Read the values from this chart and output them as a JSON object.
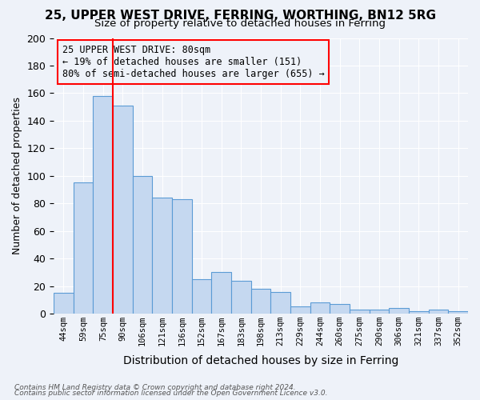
{
  "title": "25, UPPER WEST DRIVE, FERRING, WORTHING, BN12 5RG",
  "subtitle": "Size of property relative to detached houses in Ferring",
  "xlabel": "Distribution of detached houses by size in Ferring",
  "ylabel": "Number of detached properties",
  "bar_labels": [
    "44sqm",
    "59sqm",
    "75sqm",
    "90sqm",
    "106sqm",
    "121sqm",
    "136sqm",
    "152sqm",
    "167sqm",
    "183sqm",
    "198sqm",
    "213sqm",
    "229sqm",
    "244sqm",
    "260sqm",
    "275sqm",
    "290sqm",
    "306sqm",
    "321sqm",
    "337sqm",
    "352sqm"
  ],
  "bar_values": [
    15,
    95,
    158,
    151,
    100,
    84,
    83,
    25,
    30,
    24,
    18,
    16,
    5,
    8,
    7,
    3,
    3,
    4,
    2,
    3,
    2
  ],
  "bar_color": "#c5d8f0",
  "bar_edge_color": "#5b9bd5",
  "ylim": [
    0,
    200
  ],
  "yticks": [
    0,
    20,
    40,
    60,
    80,
    100,
    120,
    140,
    160,
    180,
    200
  ],
  "red_line_x": 2.5,
  "annotation_title": "25 UPPER WEST DRIVE: 80sqm",
  "annotation_line1": "← 19% of detached houses are smaller (151)",
  "annotation_line2": "80% of semi-detached houses are larger (655) →",
  "footnote1": "Contains HM Land Registry data © Crown copyright and database right 2024.",
  "footnote2": "Contains public sector information licensed under the Open Government Licence v3.0.",
  "background_color": "#eef2f9",
  "grid_color": "#ffffff",
  "title_fontsize": 11,
  "subtitle_fontsize": 9.5
}
